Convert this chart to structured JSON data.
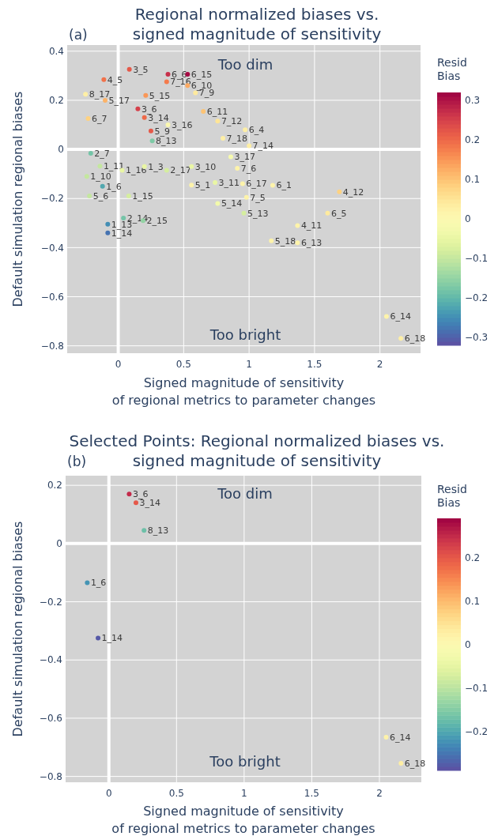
{
  "chart_data": [
    {
      "type": "scatter",
      "title": "Regional normalized biases vs.\nsigned magnitude of sensitivity",
      "xlabel": "Signed magnitude of sensitivity\nof regional metrics to parameter changes",
      "ylabel": "Default simulation regional biases",
      "clabel": "Resid\nBias",
      "marker": "circle",
      "grid": true,
      "annotations": [
        "(a)",
        "Too dim",
        "Too bright"
      ],
      "xlim": [
        -0.39,
        2.31
      ],
      "xticks": [
        0,
        0.5,
        1,
        1.5,
        2
      ],
      "ylim": [
        -0.83,
        0.425
      ],
      "yticks": [
        0.4,
        0.2,
        0,
        {
          "value": -0.2,
          "label": "−0.2"
        },
        {
          "value": -0.4,
          "label": "−0.4"
        },
        {
          "value": -0.6,
          "label": "−0.6"
        },
        {
          "value": -0.8,
          "label": "−0.8"
        }
      ],
      "clim": [
        -0.32,
        0.32
      ],
      "cticks": [
        0.3,
        0.2,
        0.1,
        0,
        {
          "value": -0.1,
          "label": "−0.1"
        },
        {
          "value": -0.2,
          "label": "−0.2"
        },
        {
          "value": -0.3,
          "label": "−0.3"
        }
      ],
      "x": [
        0.085,
        -0.11,
        0.38,
        0.53,
        0.37,
        0.53,
        0.59,
        0.21,
        -0.25,
        -0.1,
        0.15,
        0.2,
        0.25,
        -0.23,
        -0.21,
        0.38,
        0.65,
        0.76,
        0.97,
        1.0,
        0.8,
        0.86,
        0.91,
        0.95,
        1.18,
        0.98,
        0.96,
        1.69,
        1.6,
        1.37,
        1.17,
        1.37,
        2.05,
        2.16,
        -0.08,
        -0.08,
        0.04,
        0.19,
        -0.12,
        -0.24,
        -0.14,
        -0.22,
        0.08,
        0.03,
        0.2,
        0.37,
        0.56,
        0.74,
        0.76,
        0.56,
        0.26
      ],
      "values": [
        0.326,
        0.284,
        0.306,
        0.306,
        0.275,
        0.26,
        0.23,
        0.22,
        0.225,
        0.2,
        0.165,
        0.13,
        0.075,
        0.126,
        -0.016,
        0.1,
        0.155,
        0.115,
        0.08,
        0.015,
        0.045,
        -0.03,
        -0.077,
        -0.14,
        -0.146,
        -0.195,
        -0.26,
        -0.173,
        -0.26,
        -0.31,
        -0.372,
        -0.38,
        -0.68,
        -0.77,
        -0.305,
        -0.34,
        -0.28,
        -0.29,
        -0.15,
        -0.11,
        -0.068,
        -0.19,
        -0.19,
        -0.085,
        -0.07,
        -0.085,
        -0.145,
        -0.135,
        -0.22,
        -0.07,
        0.035
      ],
      "cvalues": [
        0.22,
        0.19,
        0.27,
        0.31,
        0.18,
        0.13,
        0.04,
        0.15,
        0.03,
        0.12,
        0.25,
        0.2,
        0.22,
        0.08,
        -0.18,
        0.0,
        0.1,
        0.05,
        0.03,
        0.03,
        0.03,
        -0.02,
        0.02,
        0.02,
        0.02,
        0.02,
        -0.08,
        0.08,
        0.04,
        0.02,
        0.02,
        0.02,
        0.02,
        0.03,
        -0.25,
        -0.28,
        -0.18,
        -0.15,
        -0.22,
        -0.1,
        -0.1,
        -0.1,
        -0.08,
        -0.05,
        -0.05,
        -0.08,
        0.02,
        -0.05,
        -0.03,
        -0.05,
        -0.17
      ],
      "value_labels": [
        "3_5",
        "4_5",
        "6_6",
        "6_15",
        "7_16",
        "6_10",
        "7_9",
        "5_15",
        "8_17",
        "5_17",
        "3_6",
        "3_14",
        "5_9",
        "6_7",
        "2_7",
        "3_16",
        "6_11",
        "7_12",
        "6_4",
        "7_14",
        "7_18",
        "3_17",
        "7_6",
        "6_17",
        "6_1",
        "7_5",
        "5_13",
        "4_12",
        "6_5",
        "4_11",
        "5_18",
        "6_13",
        "6_14",
        "6_18",
        "1_13",
        "1_14",
        "2_14",
        "2_15",
        "1_6",
        "1_10",
        "1_11",
        "5_6",
        "1_15",
        "1_16",
        "1_3",
        "2_17",
        "5_1",
        "3_11",
        "5_14",
        "3_10",
        "8_13"
      ]
    },
    {
      "type": "scatter",
      "title": "Selected Points: Regional normalized biases vs.\nsigned magnitude of sensitivity",
      "xlabel": "Signed magnitude of sensitivity\nof regional metrics to parameter changes",
      "ylabel": "Default simulation regional biases",
      "clabel": "Resid\nBias",
      "marker": "circle",
      "grid": true,
      "annotations": [
        "(b)",
        "Too dim",
        "Too bright"
      ],
      "xlim": [
        -0.32,
        2.31
      ],
      "xticks": [
        0,
        0.5,
        1,
        1.5,
        2
      ],
      "ylim": [
        -0.82,
        0.233
      ],
      "yticks": [
        0.2,
        0,
        {
          "value": -0.2,
          "label": "−0.2"
        },
        {
          "value": -0.4,
          "label": "−0.4"
        },
        {
          "value": -0.6,
          "label": "−0.6"
        },
        {
          "value": -0.8,
          "label": "−0.8"
        }
      ],
      "clim": [
        -0.29,
        0.29
      ],
      "cticks": [
        0.2,
        0.1,
        0,
        {
          "value": -0.1,
          "label": "−0.1"
        },
        {
          "value": -0.2,
          "label": "−0.2"
        }
      ],
      "x": [
        0.15,
        0.2,
        0.26,
        -0.16,
        -0.08,
        2.05,
        2.16
      ],
      "values": [
        0.17,
        0.14,
        0.045,
        -0.135,
        -0.325,
        -0.665,
        -0.755
      ],
      "cvalues": [
        0.25,
        0.2,
        -0.17,
        -0.22,
        -0.28,
        0.02,
        0.03
      ],
      "value_labels": [
        "3_6",
        "3_14",
        "8_13",
        "1_6",
        "1_14",
        "6_14",
        "6_18"
      ]
    }
  ]
}
